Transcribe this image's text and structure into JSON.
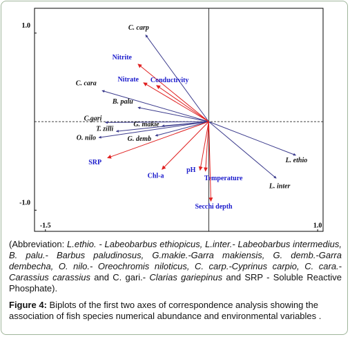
{
  "chart_data": {
    "type": "biplot",
    "xlim": [
      -1.6,
      1.05
    ],
    "ylim": [
      -1.2,
      1.28
    ],
    "xticks": [
      -1.5,
      {
        "value": 1,
        "label": "1.0"
      }
    ],
    "yticks": [
      {
        "value": -1,
        "label": "-1.0"
      },
      {
        "value": 1,
        "label": "1.0"
      }
    ],
    "series": [
      {
        "color": "#3a3a8c",
        "label_color": "#111111",
        "labels": [
          "C. carp",
          "C. cara",
          "B. palu",
          "C.gari",
          "G. makie",
          "T. zilli",
          "O. nilo",
          "G. demb",
          "L. ethio",
          "L. inter"
        ],
        "x": [
          -0.58,
          -0.98,
          -0.65,
          -0.95,
          -0.43,
          -0.85,
          -1.01,
          -0.49,
          0.8,
          0.62
        ],
        "y": [
          0.98,
          0.35,
          0.16,
          -0.01,
          -0.05,
          -0.11,
          -0.18,
          -0.16,
          -0.38,
          -0.64
        ]
      },
      {
        "color": "#e02020",
        "label_color": "#1a1acc",
        "labels": [
          "Nitrite",
          "Nitrate",
          "Conductivity",
          "SRP",
          "Chl-a",
          "pH",
          "Temperature",
          "Secchi depth"
        ],
        "x": [
          -0.65,
          -0.6,
          -0.48,
          -0.93,
          -0.43,
          -0.08,
          -0.03,
          0.02
        ],
        "y": [
          0.65,
          0.44,
          0.41,
          -0.41,
          -0.54,
          -0.55,
          -0.56,
          -0.9
        ]
      }
    ]
  },
  "caption": {
    "abbreviation": [
      {
        "text": "(Abbreviation: ",
        "italic": false
      },
      {
        "text": "L.ethio. - Labeobarbus ethiopicus, L.inter.- Labeobarbus intermedius, B. palu.- Barbus paludinosus, G.makie.-Garra makiensis, G. demb.-Garra dembecha, O. nilo.- Oreochromis niloticus, C. carp.-Cyprinus carpio, C. cara.- Carassius carassius",
        "italic": true
      },
      {
        "text": " and C. gari.- ",
        "italic": false
      },
      {
        "text": "Clarias gariepinus",
        "italic": true
      },
      {
        "text": " and SRP - Soluble Reactive Phosphate).",
        "italic": false
      }
    ],
    "figure_label": "Figure 4:",
    "figure_text": " Biplots of the first two axes of correspondence analysis showing the association of fish species numerical abundance and environmental variables ."
  }
}
